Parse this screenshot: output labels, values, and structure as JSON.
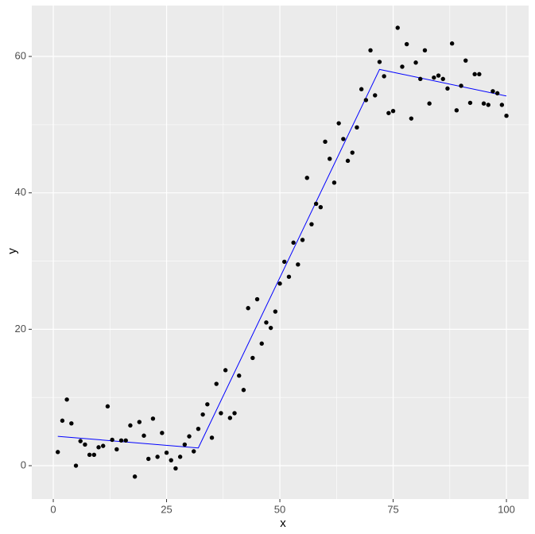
{
  "chart_data": {
    "type": "scatter",
    "xlabel": "x",
    "ylabel": "y",
    "x": [
      1,
      2,
      3,
      4,
      5,
      6,
      7,
      8,
      9,
      10,
      11,
      12,
      13,
      14,
      15,
      16,
      17,
      18,
      19,
      20,
      21,
      22,
      23,
      24,
      25,
      26,
      27,
      28,
      29,
      30,
      31,
      32,
      33,
      34,
      35,
      36,
      37,
      38,
      39,
      40,
      41,
      42,
      43,
      44,
      45,
      46,
      47,
      48,
      49,
      50,
      51,
      52,
      53,
      54,
      55,
      56,
      57,
      58,
      59,
      60,
      61,
      62,
      63,
      64,
      65,
      66,
      67,
      68,
      69,
      70,
      71,
      72,
      73,
      74,
      75,
      76,
      77,
      78,
      79,
      80,
      81,
      82,
      83,
      84,
      85,
      86,
      87,
      88,
      89,
      90,
      91,
      92,
      93,
      94,
      95,
      96,
      97,
      98,
      99,
      100
    ],
    "values": [
      2.0,
      6.6,
      9.7,
      6.2,
      0,
      3.6,
      3.1,
      1.6,
      1.6,
      2.7,
      2.9,
      8.7,
      3.8,
      2.4,
      3.7,
      3.7,
      5.9,
      -1.6,
      6.4,
      4.4,
      1.0,
      6.9,
      1.3,
      4.8,
      1.9,
      0.8,
      -0.4,
      1.3,
      3.1,
      4.3,
      2.1,
      5.4,
      7.5,
      9.0,
      4.1,
      12.0,
      7.7,
      14.0,
      7.0,
      7.7,
      13.2,
      11.1,
      23.1,
      15.8,
      24.4,
      17.9,
      21.0,
      20.2,
      22.6,
      26.7,
      29.9,
      27.7,
      32.7,
      29.5,
      33.1,
      42.2,
      35.4,
      38.4,
      37.9,
      47.5,
      45.0,
      41.5,
      50.2,
      47.9,
      44.7,
      45.9,
      49.6,
      55.2,
      53.6,
      60.9,
      54.3,
      59.2,
      57.1,
      51.7,
      52.0,
      64.2,
      58.5,
      61.8,
      50.9,
      59.1,
      56.7,
      60.9,
      53.1,
      56.9,
      57.2,
      56.7,
      55.3,
      61.9,
      52.1,
      55.7,
      59.4,
      53.2,
      57.4,
      57.4,
      53.1,
      52.9,
      54.9,
      54.6,
      52.9,
      51.3
    ],
    "color": "#000000",
    "fit": {
      "x": [
        1,
        32,
        72,
        100
      ],
      "values": [
        4.3,
        2.6,
        58.1,
        54.2
      ],
      "color": "#0000ff"
    },
    "xlim": [
      -4.74,
      104.9
    ],
    "ylim": [
      -4.89,
      67.46
    ],
    "xticks": [
      0,
      25,
      50,
      75,
      100
    ],
    "yticks": [
      0,
      20,
      40,
      60
    ],
    "grid": true,
    "background": "#ebebeb"
  }
}
